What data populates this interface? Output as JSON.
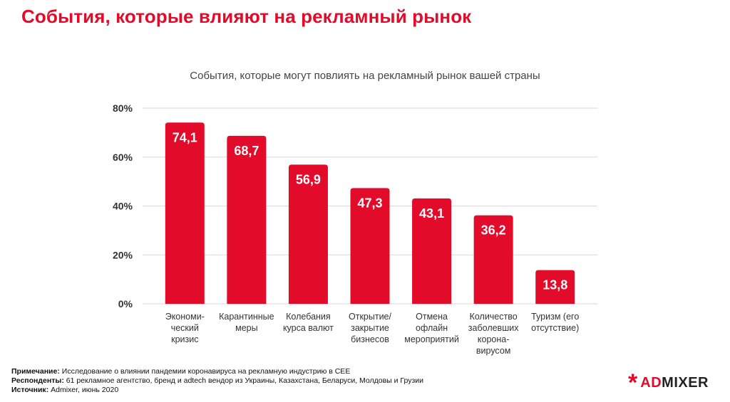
{
  "header": {
    "title": "События, которые влияют на рекламный рынок"
  },
  "chart_data": {
    "type": "bar",
    "title": "События, которые могут повлиять на рекламный рынок вашей страны",
    "categories": [
      [
        "Экономи-",
        "ческий",
        "кризис"
      ],
      [
        "Карантинные",
        "меры"
      ],
      [
        "Колебания",
        "курса валют"
      ],
      [
        "Открытие/",
        "закрытие",
        "бизнесов"
      ],
      [
        "Отмена",
        "офлайн",
        "мероприятий"
      ],
      [
        "Количество",
        "заболевших",
        "корона-",
        "вирусом"
      ],
      [
        "Туризм (его",
        "отсутствие)"
      ]
    ],
    "values": [
      74.1,
      68.7,
      56.9,
      47.3,
      43.1,
      36.2,
      13.8
    ],
    "value_labels": [
      "74,1",
      "68,7",
      "56,9",
      "47,3",
      "43,1",
      "36,2",
      "13,8"
    ],
    "ylim": [
      0,
      80
    ],
    "yticks": [
      0,
      20,
      40,
      60,
      80
    ],
    "ytick_labels": [
      "0%",
      "20%",
      "40%",
      "60%",
      "80%"
    ],
    "grid": true,
    "bar_color": "#e30b2a"
  },
  "footer": {
    "note_label": "Примечание:",
    "note_text": "Исследование о влиянии пандемии коронавируса на рекламную индустрию в CEE",
    "respondents_label": "Респонденты:",
    "respondents_text": "61 рекламное агентство, бренд и adtech вендор из Украины, Казахстана, Беларуси, Молдовы и Грузии",
    "source_label": "Источник:",
    "source_text": "Admixer, июнь 2020"
  },
  "logo": {
    "star": "*",
    "part1": "AD",
    "part2": "MIXER"
  }
}
